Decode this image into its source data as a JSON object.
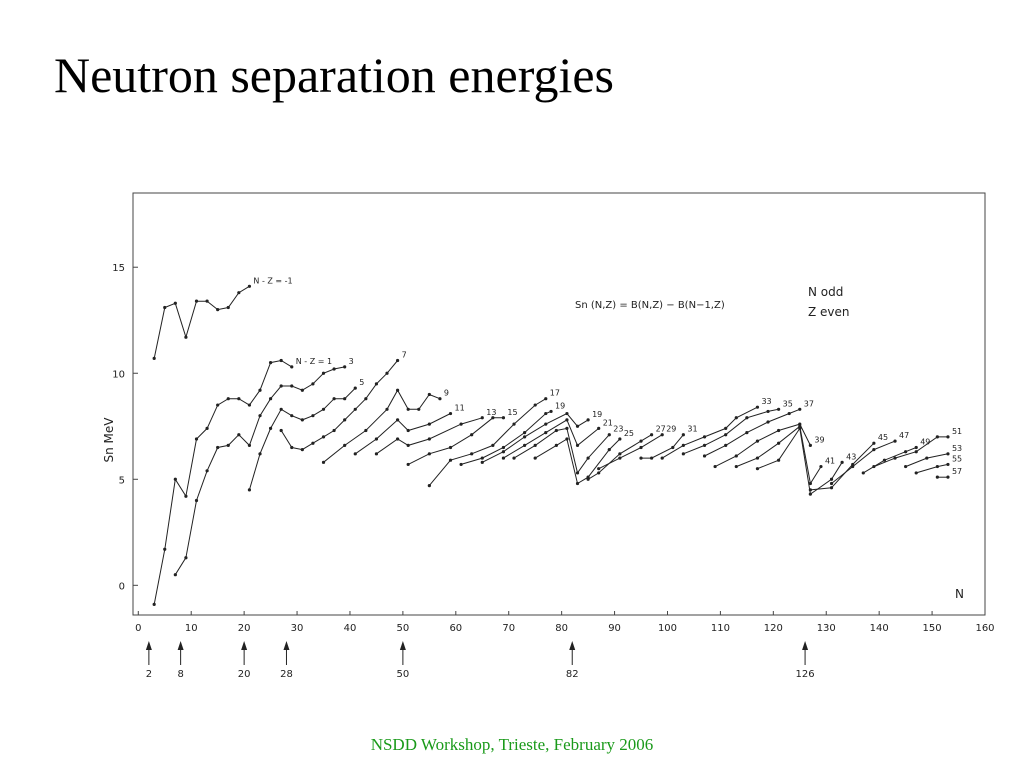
{
  "slide": {
    "title": "Neutron separation energies",
    "footer": "NSDD Workshop, Trieste, February 2006"
  },
  "chart_data": {
    "type": "line",
    "x_label": "N",
    "y_label": "Sn MeV",
    "formula": "Sn (N,Z) = B(N,Z) − B(N−1,Z)",
    "notes": [
      "N odd",
      "Z even"
    ],
    "color": "#222222",
    "xlim": [
      -1,
      160
    ],
    "xticks": [
      0,
      10,
      20,
      30,
      40,
      50,
      60,
      70,
      80,
      90,
      100,
      110,
      120,
      130,
      140,
      150,
      160
    ],
    "ylim": [
      -1.4,
      18.5
    ],
    "yticks": [
      0,
      5,
      10,
      15
    ],
    "magic_numbers": [
      2,
      8,
      20,
      28,
      50,
      82,
      126
    ],
    "series": [
      {
        "name": "N - Z = -1",
        "x": [
          3,
          5,
          7,
          9,
          11,
          13,
          15,
          17,
          19,
          21
        ],
        "values": [
          10.7,
          13.1,
          13.3,
          11.7,
          13.4,
          13.4,
          13.0,
          13.1,
          13.8,
          14.1
        ]
      },
      {
        "name": "N - Z = 1",
        "x": [
          3,
          5,
          7,
          9,
          11,
          13,
          15,
          17,
          19,
          21,
          23,
          25,
          27,
          29
        ],
        "values": [
          -0.9,
          1.7,
          5.0,
          4.2,
          6.9,
          7.4,
          8.5,
          8.8,
          8.8,
          8.5,
          9.2,
          10.5,
          10.6,
          10.3
        ]
      },
      {
        "name": "3",
        "x": [
          7,
          9,
          11,
          13,
          15,
          17,
          19,
          21,
          23,
          25,
          27,
          29,
          31,
          33,
          35,
          37,
          39
        ],
        "values": [
          0.5,
          1.3,
          4.0,
          5.4,
          6.5,
          6.6,
          7.1,
          6.6,
          8.0,
          8.8,
          9.4,
          9.4,
          9.2,
          9.5,
          10.0,
          10.2,
          10.3
        ]
      },
      {
        "name": "5",
        "x": [
          21,
          23,
          25,
          27,
          29,
          31,
          33,
          35,
          37,
          39,
          41
        ],
        "values": [
          4.5,
          6.2,
          7.4,
          8.3,
          8.0,
          7.8,
          8.0,
          8.3,
          8.8,
          8.8,
          9.3
        ]
      },
      {
        "name": "7",
        "x": [
          27,
          29,
          31,
          33,
          35,
          37,
          39,
          41,
          43,
          45,
          47,
          49
        ],
        "values": [
          7.3,
          6.5,
          6.4,
          6.7,
          7.0,
          7.3,
          7.8,
          8.3,
          8.8,
          9.5,
          10.0,
          10.6
        ]
      },
      {
        "name": "9",
        "x": [
          35,
          39,
          43,
          47,
          49,
          51,
          53,
          55,
          57
        ],
        "values": [
          5.8,
          6.6,
          7.3,
          8.3,
          9.2,
          8.3,
          8.3,
          9.0,
          8.8
        ]
      },
      {
        "name": "11",
        "x": [
          41,
          45,
          49,
          51,
          55,
          59
        ],
        "values": [
          6.2,
          6.9,
          7.8,
          7.3,
          7.6,
          8.1
        ]
      },
      {
        "name": "13",
        "x": [
          45,
          49,
          51,
          55,
          61,
          65
        ],
        "values": [
          6.2,
          6.9,
          6.6,
          6.9,
          7.6,
          7.9
        ]
      },
      {
        "name": "15",
        "x": [
          51,
          55,
          59,
          63,
          67,
          69
        ],
        "values": [
          5.7,
          6.2,
          6.5,
          7.1,
          7.9,
          7.9
        ]
      },
      {
        "name": "17",
        "x": [
          55,
          59,
          63,
          67,
          71,
          75,
          77
        ],
        "values": [
          4.7,
          5.9,
          6.2,
          6.6,
          7.6,
          8.5,
          8.8
        ]
      },
      {
        "name": "19",
        "x": [
          61,
          65,
          69,
          73,
          77,
          78
        ],
        "values": [
          5.7,
          6.0,
          6.5,
          7.2,
          8.1,
          8.2
        ]
      },
      {
        "name": "19",
        "x": [
          65,
          69,
          73,
          77,
          81,
          83,
          85
        ],
        "values": [
          5.8,
          6.3,
          7.0,
          7.6,
          8.1,
          7.5,
          7.8
        ]
      },
      {
        "name": "21",
        "x": [
          69,
          73,
          77,
          81,
          83,
          87
        ],
        "values": [
          6.0,
          6.6,
          7.2,
          7.8,
          6.6,
          7.4
        ]
      },
      {
        "name": "23",
        "x": [
          71,
          75,
          79,
          81,
          83,
          85,
          89
        ],
        "values": [
          6.0,
          6.6,
          7.3,
          7.4,
          5.3,
          6.0,
          7.1
        ]
      },
      {
        "name": "25",
        "x": [
          75,
          79,
          81,
          83,
          85,
          89,
          91
        ],
        "values": [
          6.0,
          6.6,
          6.9,
          4.8,
          5.1,
          6.4,
          6.9
        ]
      },
      {
        "name": "27",
        "x": [
          85,
          87,
          91,
          95,
          97
        ],
        "values": [
          5.0,
          5.3,
          6.2,
          6.8,
          7.1
        ]
      },
      {
        "name": "29",
        "x": [
          87,
          91,
          95,
          99
        ],
        "values": [
          5.5,
          6.0,
          6.5,
          7.1
        ]
      },
      {
        "name": "31",
        "x": [
          95,
          97,
          101,
          103
        ],
        "values": [
          6.0,
          6.0,
          6.5,
          7.1
        ]
      },
      {
        "name": "33",
        "x": [
          99,
          103,
          107,
          111,
          113,
          117
        ],
        "values": [
          6.0,
          6.6,
          7.0,
          7.4,
          7.9,
          8.4
        ]
      },
      {
        "name": "35",
        "x": [
          103,
          107,
          111,
          115,
          119,
          121
        ],
        "values": [
          6.2,
          6.6,
          7.1,
          7.9,
          8.2,
          8.3
        ]
      },
      {
        "name": "37",
        "x": [
          107,
          111,
          115,
          119,
          123,
          125
        ],
        "values": [
          6.1,
          6.6,
          7.2,
          7.7,
          8.1,
          8.3
        ]
      },
      {
        "name": "39",
        "x": [
          109,
          113,
          117,
          121,
          125,
          127
        ],
        "values": [
          5.6,
          6.1,
          6.8,
          7.3,
          7.6,
          6.6
        ]
      },
      {
        "name": "41",
        "x": [
          113,
          117,
          121,
          125,
          127,
          129
        ],
        "values": [
          5.6,
          6.0,
          6.7,
          7.5,
          4.8,
          5.6
        ]
      },
      {
        "name": "43",
        "x": [
          117,
          121,
          125,
          127,
          131,
          133
        ],
        "values": [
          5.5,
          5.9,
          7.4,
          4.3,
          5.0,
          5.8
        ]
      },
      {
        "name": "45",
        "x": [
          127,
          131,
          135,
          139
        ],
        "values": [
          4.5,
          4.6,
          5.7,
          6.7
        ]
      },
      {
        "name": "47",
        "x": [
          131,
          135,
          139,
          143
        ],
        "values": [
          4.8,
          5.6,
          6.4,
          6.8
        ]
      },
      {
        "name": "49",
        "x": [
          137,
          141,
          145,
          147
        ],
        "values": [
          5.3,
          5.9,
          6.3,
          6.5
        ]
      },
      {
        "name": "51",
        "x": [
          139,
          143,
          147,
          151,
          153
        ],
        "values": [
          5.6,
          6.0,
          6.3,
          7.0,
          7.0
        ]
      },
      {
        "name": "53",
        "x": [
          145,
          149,
          153
        ],
        "values": [
          5.6,
          6.0,
          6.2
        ]
      },
      {
        "name": "55",
        "x": [
          147,
          151,
          153
        ],
        "values": [
          5.3,
          5.6,
          5.7
        ]
      },
      {
        "name": "57",
        "x": [
          151,
          153
        ],
        "values": [
          5.1,
          5.1
        ]
      }
    ]
  }
}
